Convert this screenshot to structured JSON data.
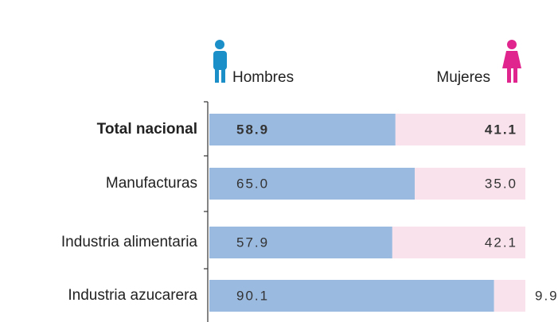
{
  "chart_data": {
    "type": "stacked-bar-horizontal",
    "categories": [
      "Total nacional",
      "Manufacturas",
      "Industria alimentaria",
      "Industria azucarera"
    ],
    "series": [
      {
        "name": "Hombres",
        "color": "#9bbae0",
        "values": [
          58.9,
          65.0,
          57.9,
          90.1
        ],
        "value_labels": [
          "58.9",
          "65.0",
          "57.9",
          "90.1"
        ]
      },
      {
        "name": "Mujeres",
        "color": "#f9e2ec",
        "values": [
          41.1,
          35.0,
          42.1,
          9.9
        ],
        "value_labels": [
          "41.1",
          "35.0",
          "42.1",
          "9.9"
        ]
      }
    ],
    "xlim": [
      0,
      100
    ]
  }
}
